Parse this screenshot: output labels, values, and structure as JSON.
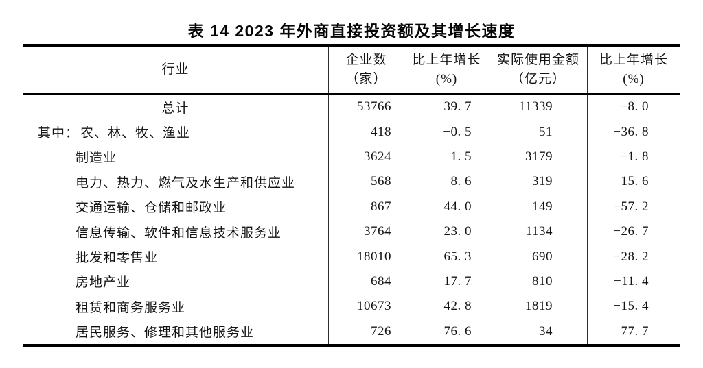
{
  "title": "表 14  2023 年外商直接投资额及其增长速度",
  "table": {
    "columns": [
      {
        "line1": "行业",
        "line2": ""
      },
      {
        "line1": "企业数",
        "line2": "（家）"
      },
      {
        "line1": "比上年增长",
        "line2": "(%)"
      },
      {
        "line1": "实际使用金额",
        "line2": "（亿元）"
      },
      {
        "line1": "比上年增长",
        "line2": "(%)"
      }
    ],
    "rows": [
      {
        "prefix": "",
        "label": "总计",
        "align": "center",
        "values": [
          "53766",
          "39. 7",
          "11339",
          "−8. 0"
        ]
      },
      {
        "prefix": "其中：",
        "label": "农、林、牧、渔业",
        "align": "prefix",
        "values": [
          "418",
          "−0. 5",
          "51",
          "−36. 8"
        ]
      },
      {
        "prefix": "",
        "label": "制造业",
        "align": "indent",
        "values": [
          "3624",
          "1. 5",
          "3179",
          "−1. 8"
        ]
      },
      {
        "prefix": "",
        "label": "电力、热力、燃气及水生产和供应业",
        "align": "indent",
        "values": [
          "568",
          "8. 6",
          "319",
          "15. 6"
        ]
      },
      {
        "prefix": "",
        "label": "交通运输、仓储和邮政业",
        "align": "indent",
        "values": [
          "867",
          "44. 0",
          "149",
          "−57. 2"
        ]
      },
      {
        "prefix": "",
        "label": "信息传输、软件和信息技术服务业",
        "align": "indent",
        "values": [
          "3764",
          "23. 0",
          "1134",
          "−26. 7"
        ]
      },
      {
        "prefix": "",
        "label": "批发和零售业",
        "align": "indent",
        "values": [
          "18010",
          "65. 3",
          "690",
          "−28. 2"
        ]
      },
      {
        "prefix": "",
        "label": "房地产业",
        "align": "indent",
        "values": [
          "684",
          "17. 7",
          "810",
          "−11. 4"
        ]
      },
      {
        "prefix": "",
        "label": "租赁和商务服务业",
        "align": "indent",
        "values": [
          "10673",
          "42. 8",
          "1819",
          "−15. 4"
        ]
      },
      {
        "prefix": "",
        "label": "居民服务、修理和其他服务业",
        "align": "indent",
        "values": [
          "726",
          "76. 6",
          "34",
          "77. 7"
        ]
      }
    ]
  },
  "colors": {
    "background": "#ffffff",
    "text": "#141414",
    "thick_rule": "#000000",
    "grid_line": "#2e2e2e"
  },
  "chart_data": {
    "type": "table",
    "title": "表 14 2023 年外商直接投资额及其增长速度",
    "columns": [
      "行业",
      "企业数（家）",
      "比上年增长(%)",
      "实际使用金额（亿元）",
      "比上年增长(%)"
    ],
    "rows": [
      [
        "总计",
        53766,
        39.7,
        11339,
        -8.0
      ],
      [
        "其中：农、林、牧、渔业",
        418,
        -0.5,
        51,
        -36.8
      ],
      [
        "制造业",
        3624,
        1.5,
        3179,
        -1.8
      ],
      [
        "电力、热力、燃气及水生产和供应业",
        568,
        8.6,
        319,
        15.6
      ],
      [
        "交通运输、仓储和邮政业",
        867,
        44.0,
        149,
        -57.2
      ],
      [
        "信息传输、软件和信息技术服务业",
        3764,
        23.0,
        1134,
        -26.7
      ],
      [
        "批发和零售业",
        18010,
        65.3,
        690,
        -28.2
      ],
      [
        "房地产业",
        684,
        17.7,
        810,
        -11.4
      ],
      [
        "租赁和商务服务业",
        10673,
        42.8,
        1819,
        -15.4
      ],
      [
        "居民服务、修理和其他服务业",
        726,
        76.6,
        34,
        77.7
      ]
    ]
  }
}
